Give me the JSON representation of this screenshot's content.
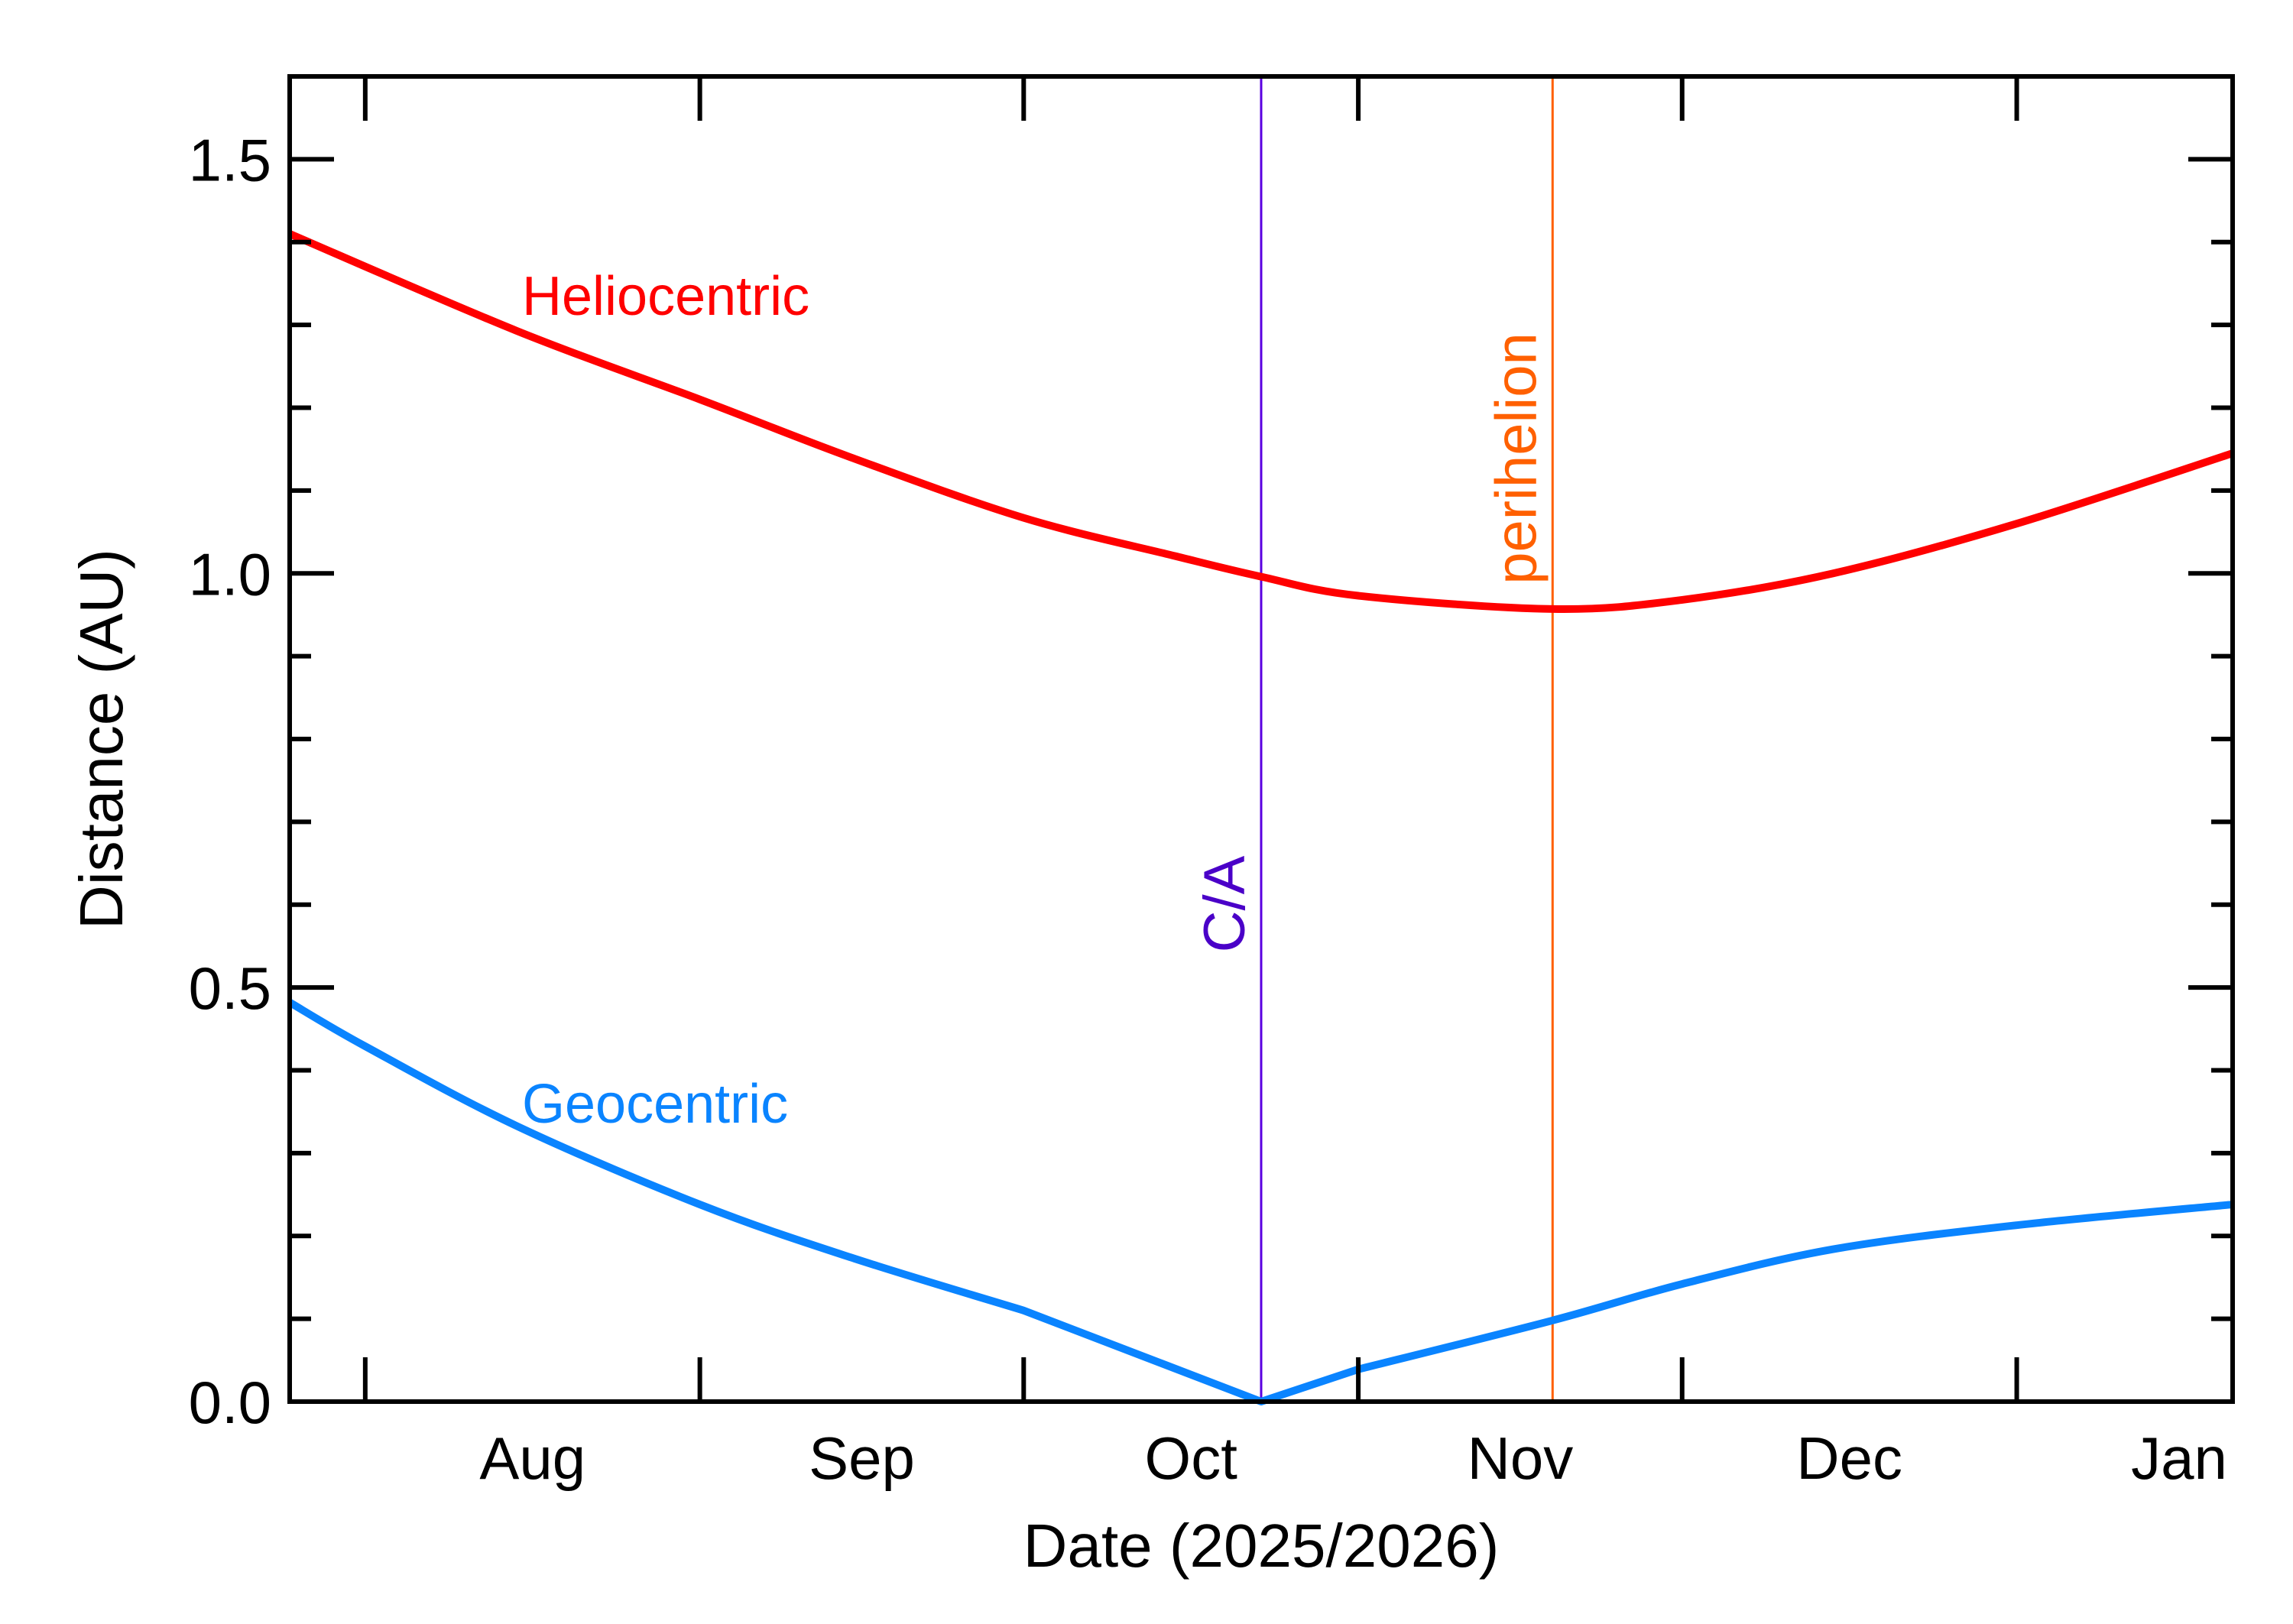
{
  "chart_data": {
    "type": "line",
    "title": "",
    "xlabel": "Date (2025/2026)",
    "ylabel": "Distance (AU)",
    "xlim": [
      "2025-07-25",
      "2026-01-21"
    ],
    "ylim": [
      0,
      1.6
    ],
    "grid": false,
    "x_ticks": [
      {
        "date": "2025-08-01",
        "label": "Aug"
      },
      {
        "date": "2025-09-01",
        "label": "Sep"
      },
      {
        "date": "2025-10-01",
        "label": "Oct"
      },
      {
        "date": "2025-11-01",
        "label": "Nov"
      },
      {
        "date": "2025-12-01",
        "label": "Dec"
      },
      {
        "date": "2026-01-01",
        "label": "Jan"
      }
    ],
    "x_major_ticks": [
      "2025-07-01",
      "2025-08-01",
      "2025-09-01",
      "2025-10-01",
      "2025-11-01",
      "2025-12-01",
      "2026-01-01"
    ],
    "y_ticks": [
      {
        "value": 0.0,
        "label": "0.0"
      },
      {
        "value": 0.5,
        "label": "0.5"
      },
      {
        "value": 1.0,
        "label": "1.0"
      },
      {
        "value": 1.5,
        "label": "1.5"
      }
    ],
    "y_minor_step": 0.1,
    "series": [
      {
        "name": "Heliocentric",
        "color": "#ff0000",
        "x": [
          "2025-07-25",
          "2025-08-15",
          "2025-09-01",
          "2025-09-15",
          "2025-10-01",
          "2025-10-15",
          "2025-10-23",
          "2025-11-01",
          "2025-11-19",
          "2025-12-01",
          "2025-12-15",
          "2026-01-01",
          "2026-01-21"
        ],
        "y": [
          1.41,
          1.293,
          1.21,
          1.14,
          1.067,
          1.021,
          0.996,
          0.973,
          0.957,
          0.968,
          1.0,
          1.06,
          1.145
        ]
      },
      {
        "name": "Geocentric",
        "color": "#0a84ff",
        "x": [
          "2025-07-25",
          "2025-08-01",
          "2025-08-15",
          "2025-09-01",
          "2025-09-15",
          "2025-10-01",
          "2025-10-23",
          "2025-11-01",
          "2025-11-19",
          "2025-12-01",
          "2025-12-15",
          "2026-01-01",
          "2026-01-21"
        ],
        "y": [
          0.482,
          0.429,
          0.333,
          0.238,
          0.174,
          0.11,
          0.0,
          0.039,
          0.098,
          0.142,
          0.184,
          0.213,
          0.238
        ]
      }
    ],
    "annotations": [
      {
        "label": "C/A",
        "date": "2025-10-23",
        "color": "#4a00c8",
        "line_color": "#5a00e0"
      },
      {
        "label": "perihelion",
        "date": "2025-11-19",
        "color": "#ff6000",
        "line_color": "#ff6000"
      }
    ]
  }
}
